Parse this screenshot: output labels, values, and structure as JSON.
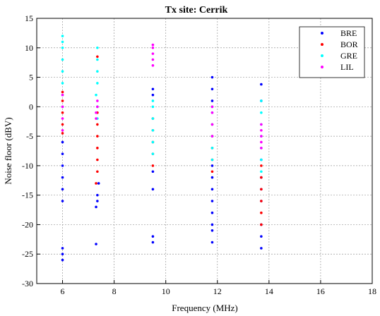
{
  "chart_data": {
    "type": "scatter",
    "title": "Tx site: Cerrik",
    "xlabel": "Frequency (MHz)",
    "ylabel": "Noise floor (dBV)",
    "xlim": [
      5,
      18
    ],
    "ylim": [
      -30,
      15
    ],
    "xticks": [
      6,
      8,
      10,
      12,
      14,
      16,
      18
    ],
    "yticks": [
      -30,
      -25,
      -20,
      -15,
      -10,
      -5,
      0,
      5,
      10,
      15
    ],
    "grid": true,
    "legend_position": "top-right",
    "series": [
      {
        "name": "BRE",
        "color": "#0000ff",
        "points": [
          [
            6.0,
            -26
          ],
          [
            6.0,
            -25
          ],
          [
            6.0,
            -24
          ],
          [
            6.0,
            -16
          ],
          [
            6.0,
            -14
          ],
          [
            6.0,
            -12
          ],
          [
            6.0,
            -10
          ],
          [
            6.0,
            -8
          ],
          [
            6.0,
            -6
          ],
          [
            7.3,
            -23.3
          ],
          [
            7.3,
            -17
          ],
          [
            7.35,
            -16
          ],
          [
            7.35,
            -15
          ],
          [
            7.4,
            -13
          ],
          [
            9.5,
            -23
          ],
          [
            9.5,
            -22
          ],
          [
            9.5,
            -14
          ],
          [
            9.5,
            -11
          ],
          [
            9.5,
            3
          ],
          [
            9.5,
            2
          ],
          [
            11.8,
            -23
          ],
          [
            11.8,
            -21
          ],
          [
            11.8,
            -20
          ],
          [
            11.8,
            -18
          ],
          [
            11.8,
            -16
          ],
          [
            11.8,
            -14
          ],
          [
            11.8,
            -12
          ],
          [
            11.8,
            -10
          ],
          [
            11.8,
            1
          ],
          [
            11.8,
            3
          ],
          [
            11.8,
            5
          ],
          [
            13.7,
            -24
          ],
          [
            13.7,
            -22
          ],
          [
            13.7,
            -20
          ],
          [
            13.7,
            -16
          ],
          [
            13.7,
            -14
          ],
          [
            13.7,
            -12
          ],
          [
            13.7,
            -9
          ],
          [
            13.7,
            1
          ],
          [
            13.7,
            3.8
          ]
        ]
      },
      {
        "name": "BOR",
        "color": "#ff0000",
        "points": [
          [
            6.0,
            -4.5
          ],
          [
            6.0,
            -3
          ],
          [
            6.0,
            -1
          ],
          [
            6.0,
            1
          ],
          [
            6.0,
            2.5
          ],
          [
            7.3,
            -13
          ],
          [
            7.35,
            -11
          ],
          [
            7.35,
            -9
          ],
          [
            7.35,
            -7
          ],
          [
            7.35,
            -5
          ],
          [
            7.35,
            -3
          ],
          [
            7.35,
            -1
          ],
          [
            7.35,
            8.5
          ],
          [
            9.5,
            -10
          ],
          [
            9.5,
            -8
          ],
          [
            9.5,
            -6
          ],
          [
            9.5,
            -4
          ],
          [
            9.5,
            -2
          ],
          [
            11.8,
            -11
          ],
          [
            11.8,
            -9
          ],
          [
            11.8,
            -7
          ],
          [
            11.8,
            -5
          ],
          [
            11.8,
            -3
          ],
          [
            13.7,
            -20
          ],
          [
            13.7,
            -18
          ],
          [
            13.7,
            -16
          ],
          [
            13.7,
            -14
          ],
          [
            13.7,
            -12
          ],
          [
            13.7,
            -10
          ]
        ]
      },
      {
        "name": "GRE",
        "color": "#00ffff",
        "points": [
          [
            6.0,
            12
          ],
          [
            6.0,
            11
          ],
          [
            6.0,
            10
          ],
          [
            6.0,
            8
          ],
          [
            6.0,
            6
          ],
          [
            6.0,
            4
          ],
          [
            6.0,
            2
          ],
          [
            6.0,
            0
          ],
          [
            7.3,
            2
          ],
          [
            7.35,
            4
          ],
          [
            7.35,
            6
          ],
          [
            7.35,
            8
          ],
          [
            7.35,
            10
          ],
          [
            7.35,
            0
          ],
          [
            7.35,
            -2
          ],
          [
            9.5,
            -8
          ],
          [
            9.5,
            -6
          ],
          [
            9.5,
            -4
          ],
          [
            9.5,
            -2
          ],
          [
            9.5,
            0
          ],
          [
            9.5,
            1
          ],
          [
            11.8,
            -9
          ],
          [
            11.8,
            -7
          ],
          [
            11.8,
            -5
          ],
          [
            11.8,
            -3
          ],
          [
            11.8,
            -1
          ],
          [
            11.8,
            0
          ],
          [
            13.7,
            -11
          ],
          [
            13.7,
            -9
          ],
          [
            13.7,
            -7
          ],
          [
            13.7,
            -5
          ],
          [
            13.7,
            -3
          ],
          [
            13.7,
            -1
          ],
          [
            13.7,
            1
          ]
        ]
      },
      {
        "name": "LIL",
        "color": "#ff00ff",
        "points": [
          [
            6.0,
            -4
          ],
          [
            6.0,
            -2
          ],
          [
            6.0,
            0
          ],
          [
            6.0,
            2
          ],
          [
            7.3,
            -2
          ],
          [
            7.3,
            -1
          ],
          [
            7.35,
            0
          ],
          [
            7.35,
            1
          ],
          [
            9.5,
            7
          ],
          [
            9.5,
            8
          ],
          [
            9.5,
            9
          ],
          [
            9.5,
            10
          ],
          [
            9.5,
            10.5
          ],
          [
            11.8,
            -5
          ],
          [
            11.8,
            -3
          ],
          [
            11.8,
            -1
          ],
          [
            11.8,
            0
          ],
          [
            13.7,
            -7
          ],
          [
            13.7,
            -6
          ],
          [
            13.7,
            -5
          ],
          [
            13.7,
            -4
          ],
          [
            13.7,
            -3
          ]
        ]
      }
    ]
  }
}
